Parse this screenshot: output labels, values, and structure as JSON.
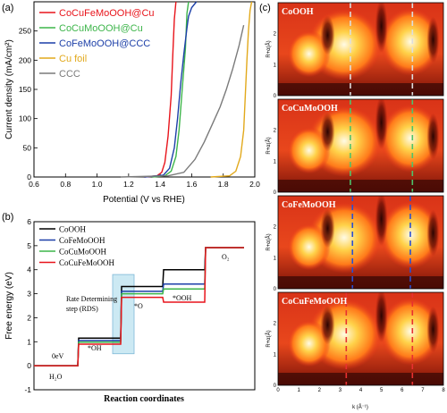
{
  "panel_letters": [
    "(a)",
    "(b)",
    "(c)"
  ],
  "chart_data": [
    {
      "type": "line",
      "xlabel": "Potential (V vs RHE)",
      "ylabel": "Current density (mA/cm²)",
      "xlim": [
        0.6,
        2.0
      ],
      "ylim": [
        0,
        300
      ],
      "xticks": [
        "0.6",
        "0.8",
        "1.0",
        "1.2",
        "1.4",
        "1.6",
        "1.8",
        "2.0"
      ],
      "yticks": [
        "0",
        "50",
        "100",
        "150",
        "200",
        "250"
      ],
      "legend_position": "top-left",
      "series": [
        {
          "name": "CoCuFeMoOOH@Cu",
          "color": "#e8141b",
          "x": [
            1.3,
            1.38,
            1.41,
            1.43,
            1.45,
            1.47,
            1.48,
            1.49,
            1.5
          ],
          "y": [
            0,
            2,
            8,
            25,
            70,
            140,
            210,
            270,
            300
          ]
        },
        {
          "name": "CoCuMoOOH@Cu",
          "color": "#3db54a",
          "x": [
            1.35,
            1.43,
            1.47,
            1.5,
            1.52,
            1.54,
            1.56,
            1.57,
            1.58
          ],
          "y": [
            0,
            2,
            10,
            35,
            80,
            150,
            220,
            280,
            300
          ]
        },
        {
          "name": "CoFeMoOOH@CCC",
          "color": "#1c3fa8",
          "x": [
            1.3,
            1.42,
            1.46,
            1.49,
            1.51,
            1.53,
            1.55,
            1.57,
            1.58,
            1.6,
            1.63
          ],
          "y": [
            0,
            3,
            15,
            50,
            100,
            160,
            210,
            255,
            275,
            290,
            300
          ]
        },
        {
          "name": "Cu foil",
          "color": "#e2a91c",
          "x": [
            1.72,
            1.84,
            1.88,
            1.91,
            1.93,
            1.94,
            1.95,
            1.96,
            1.97,
            1.98
          ],
          "y": [
            0,
            2,
            10,
            35,
            80,
            140,
            200,
            250,
            285,
            300
          ]
        },
        {
          "name": "CCC",
          "color": "#7a7a7a",
          "x": [
            1.15,
            1.45,
            1.55,
            1.62,
            1.68,
            1.73,
            1.78,
            1.82,
            1.86,
            1.9,
            1.93
          ],
          "y": [
            0,
            2,
            8,
            30,
            60,
            90,
            120,
            150,
            185,
            225,
            260
          ]
        }
      ]
    },
    {
      "type": "line",
      "xlabel": "Reaction coordinates",
      "ylabel": "Free energy (eV)",
      "ylim": [
        -1,
        6
      ],
      "yticks": [
        "-1",
        "0",
        "1",
        "2",
        "3",
        "4",
        "5",
        "6"
      ],
      "legend_position": "top-left",
      "steps": [
        "H₂O",
        "*OH",
        "*O",
        "*OOH",
        "O₂"
      ],
      "step_labels": {
        "H2O": "H₂O",
        "OH": "*OH",
        "O": "*O",
        "OOH": "*OOH",
        "O2": "O₂"
      },
      "series": [
        {
          "name": "CoOOH",
          "color": "#000000",
          "values": [
            0,
            1.15,
            3.3,
            4.0,
            4.92
          ]
        },
        {
          "name": "CoFeMoOOH",
          "color": "#1c3fa8",
          "values": [
            0,
            1.05,
            3.1,
            3.4,
            4.92
          ]
        },
        {
          "name": "CoCuMoOOH",
          "color": "#3db54a",
          "values": [
            0,
            0.98,
            3.0,
            3.2,
            4.92
          ]
        },
        {
          "name": "CoCuFeMoOOH",
          "color": "#e8141b",
          "values": [
            0,
            0.9,
            2.85,
            2.65,
            4.92
          ]
        }
      ],
      "annotations": {
        "zero": "0eV",
        "rds_line1": "Rate Determining",
        "rds_line2": "step (RDS)",
        "o2": "O₂"
      }
    },
    {
      "type": "heatmap",
      "xlabel": "k (Å⁻¹)",
      "ylabel": "R+α(Å)",
      "xlim": [
        0,
        8
      ],
      "ylim": [
        0,
        3
      ],
      "xticks": [
        "0",
        "1",
        "2",
        "3",
        "4",
        "5",
        "6",
        "7",
        "8"
      ],
      "yticks": [
        "0",
        "1",
        "2"
      ],
      "panels": [
        {
          "name": "CoOOH",
          "line_color": "#dddddd",
          "lines_k": [
            3.5,
            6.5
          ]
        },
        {
          "name": "CoCuMoOOH",
          "line_color": "#4fc36a",
          "lines_k": [
            3.5,
            6.5
          ]
        },
        {
          "name": "CoFeMoOOH",
          "line_color": "#2a4fd1",
          "lines_k": [
            3.6,
            6.4
          ]
        },
        {
          "name": "CoCuFeMoOOH",
          "line_color": "#e83030",
          "lines_k": [
            3.3,
            6.5
          ]
        }
      ]
    }
  ]
}
